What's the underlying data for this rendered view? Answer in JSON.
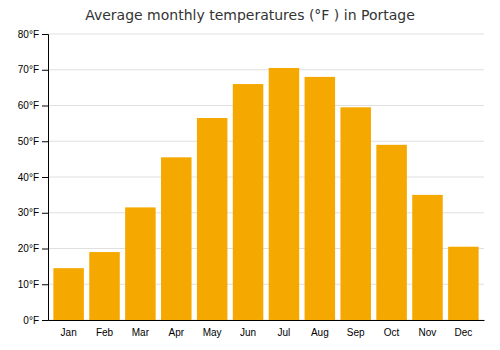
{
  "chart_data": {
    "type": "bar",
    "title": "Average monthly temperatures (°F ) in Portage",
    "categories": [
      "Jan",
      "Feb",
      "Mar",
      "Apr",
      "May",
      "Jun",
      "Jul",
      "Aug",
      "Sep",
      "Oct",
      "Nov",
      "Dec"
    ],
    "values": [
      14.5,
      19.0,
      31.5,
      45.5,
      56.5,
      66.0,
      70.5,
      68.0,
      59.5,
      49.0,
      35.0,
      20.5
    ],
    "color": "#F5A800",
    "ylim": [
      0,
      80
    ],
    "yticks": [
      {
        "value": 0,
        "label": "0°F"
      },
      {
        "value": 10,
        "label": "10°F"
      },
      {
        "value": 20,
        "label": "20°F"
      },
      {
        "value": 30,
        "label": "30°F"
      },
      {
        "value": 40,
        "label": "40°F"
      },
      {
        "value": 50,
        "label": "50°F"
      },
      {
        "value": 60,
        "label": "60°F"
      },
      {
        "value": 70,
        "label": "70°F"
      },
      {
        "value": 80,
        "label": "80°F"
      }
    ],
    "grid": true
  }
}
